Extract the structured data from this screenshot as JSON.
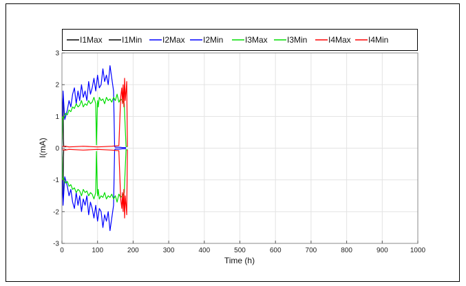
{
  "chart_data": {
    "type": "line",
    "xlabel": "Time (h)",
    "ylabel": "I(mA)",
    "xlim": [
      0,
      1000
    ],
    "ylim": [
      -3,
      3
    ],
    "xticks": [
      "0",
      "100",
      "200",
      "300",
      "400",
      "500",
      "600",
      "700",
      "800",
      "900",
      "1000"
    ],
    "yticks": [
      "-3",
      "-2",
      "-1",
      "0",
      "1",
      "2",
      "3"
    ],
    "grid": true,
    "legend_position": "top",
    "series": [
      {
        "name": "I1Max",
        "color": "#000000",
        "x": [
          0,
          1,
          2,
          3,
          4,
          5,
          8,
          10,
          12
        ],
        "y": [
          0.0,
          0.3,
          1.4,
          1.6,
          0.3,
          0.05,
          0.05,
          0.05,
          0.04
        ]
      },
      {
        "name": "I1Min",
        "color": "#000000",
        "x": [
          0,
          1,
          2,
          3,
          4,
          5,
          8,
          10,
          12
        ],
        "y": [
          0.0,
          -0.3,
          -1.4,
          -1.6,
          -0.3,
          -0.05,
          -0.05,
          -0.05,
          -0.04
        ]
      },
      {
        "name": "I2Max",
        "color": "#0000ff",
        "x": [
          0,
          3,
          8,
          15,
          20,
          25,
          30,
          35,
          40,
          45,
          50,
          55,
          60,
          65,
          70,
          75,
          80,
          85,
          90,
          95,
          100,
          105,
          110,
          115,
          120,
          125,
          130,
          135,
          140,
          145,
          148,
          150,
          160,
          170,
          180
        ],
        "y": [
          0.0,
          1.8,
          0.9,
          1.2,
          1.5,
          1.3,
          1.7,
          1.9,
          1.4,
          1.8,
          1.5,
          2.0,
          1.6,
          1.8,
          1.5,
          2.1,
          1.7,
          1.9,
          2.2,
          1.8,
          2.3,
          1.9,
          2.0,
          2.5,
          2.1,
          2.3,
          2.0,
          2.6,
          2.2,
          1.8,
          0.05,
          0.03,
          0.03,
          0.02,
          0.02
        ]
      },
      {
        "name": "I2Min",
        "color": "#0000ff",
        "x": [
          0,
          3,
          8,
          15,
          20,
          25,
          30,
          35,
          40,
          45,
          50,
          55,
          60,
          65,
          70,
          75,
          80,
          85,
          90,
          95,
          100,
          105,
          110,
          115,
          120,
          125,
          130,
          135,
          140,
          145,
          148,
          150,
          160,
          170,
          180
        ],
        "y": [
          0.0,
          -1.8,
          -0.9,
          -1.2,
          -1.5,
          -1.3,
          -1.7,
          -1.9,
          -1.4,
          -1.8,
          -1.5,
          -2.0,
          -1.6,
          -1.8,
          -1.5,
          -2.1,
          -1.7,
          -1.9,
          -2.2,
          -1.8,
          -2.3,
          -1.9,
          -2.0,
          -2.5,
          -2.1,
          -2.3,
          -2.0,
          -2.6,
          -2.2,
          -1.8,
          -0.05,
          -0.03,
          -0.03,
          -0.02,
          -0.02
        ]
      },
      {
        "name": "I3Max",
        "color": "#00dd00",
        "x": [
          0,
          2,
          5,
          10,
          15,
          20,
          25,
          30,
          35,
          40,
          45,
          50,
          55,
          60,
          65,
          70,
          75,
          80,
          85,
          90,
          95,
          97,
          100,
          102,
          105,
          110,
          115,
          120,
          125,
          130,
          135,
          140,
          145,
          150,
          155,
          160,
          165,
          170,
          175,
          180,
          185
        ],
        "y": [
          0.0,
          1.0,
          0.95,
          1.1,
          1.05,
          1.2,
          1.15,
          1.3,
          1.25,
          1.4,
          1.3,
          1.35,
          1.5,
          1.3,
          1.4,
          1.35,
          1.5,
          1.4,
          1.45,
          1.6,
          1.4,
          0.1,
          1.5,
          1.3,
          1.6,
          1.5,
          1.55,
          1.4,
          1.6,
          1.5,
          1.55,
          1.45,
          1.6,
          1.5,
          1.7,
          1.45,
          1.55,
          1.5,
          1.4,
          0.05,
          0.05
        ]
      },
      {
        "name": "I3Min",
        "color": "#00dd00",
        "x": [
          0,
          2,
          5,
          10,
          15,
          20,
          25,
          30,
          35,
          40,
          45,
          50,
          55,
          60,
          65,
          70,
          75,
          80,
          85,
          90,
          95,
          97,
          100,
          102,
          105,
          110,
          115,
          120,
          125,
          130,
          135,
          140,
          145,
          150,
          155,
          160,
          165,
          170,
          175,
          180,
          185
        ],
        "y": [
          0.0,
          -1.0,
          -0.95,
          -1.1,
          -1.05,
          -1.2,
          -1.15,
          -1.3,
          -1.25,
          -1.4,
          -1.3,
          -1.35,
          -1.5,
          -1.3,
          -1.4,
          -1.35,
          -1.5,
          -1.4,
          -1.45,
          -1.6,
          -1.4,
          -0.1,
          -1.5,
          -1.3,
          -1.6,
          -1.5,
          -1.55,
          -1.4,
          -1.6,
          -1.5,
          -1.55,
          -1.45,
          -1.6,
          -1.5,
          -1.7,
          -1.45,
          -1.55,
          -1.5,
          -1.4,
          -0.05,
          -0.05
        ]
      },
      {
        "name": "I4Max",
        "color": "#ff0000",
        "x": [
          0,
          10,
          20,
          40,
          60,
          80,
          100,
          120,
          140,
          160,
          165,
          168,
          170,
          172,
          174,
          176,
          178,
          180,
          182,
          184
        ],
        "y": [
          0.05,
          0.06,
          0.04,
          0.05,
          0.06,
          0.05,
          0.04,
          0.05,
          0.06,
          0.08,
          1.6,
          1.9,
          1.4,
          2.0,
          1.3,
          2.2,
          1.5,
          1.8,
          2.1,
          0.05
        ]
      },
      {
        "name": "I4Min",
        "color": "#ff0000",
        "x": [
          0,
          10,
          20,
          40,
          60,
          80,
          100,
          120,
          140,
          160,
          165,
          168,
          170,
          172,
          174,
          176,
          178,
          180,
          182,
          184
        ],
        "y": [
          -0.05,
          -0.06,
          -0.04,
          -0.05,
          -0.06,
          -0.05,
          -0.04,
          -0.05,
          -0.06,
          -0.08,
          -1.6,
          -1.9,
          -1.4,
          -2.0,
          -1.3,
          -2.2,
          -1.5,
          -1.8,
          -2.1,
          -0.05
        ]
      }
    ]
  }
}
